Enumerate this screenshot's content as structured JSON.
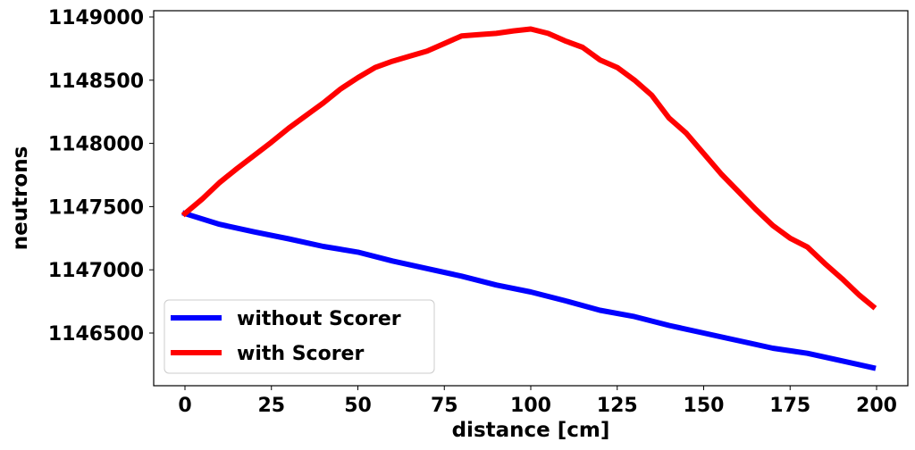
{
  "chart_data": {
    "type": "line",
    "title": "",
    "xlabel": "distance [cm]",
    "ylabel": "neutrons",
    "xlim": [
      -8.5,
      209
    ],
    "ylim": [
      1146110,
      1149050
    ],
    "xticks": [
      0,
      25,
      50,
      75,
      100,
      125,
      150,
      175,
      200
    ],
    "xtick_labels": [
      "0",
      "25",
      "50",
      "75",
      "100",
      "125",
      "150",
      "175",
      "200"
    ],
    "yticks": [
      1146500,
      1147000,
      1147500,
      1148000,
      1148500,
      1149000
    ],
    "ytick_labels": [
      "1146500",
      "1147000",
      "1147500",
      "1148000",
      "1148500",
      "1149000"
    ],
    "grid": false,
    "legend_position": "lower left",
    "series": [
      {
        "name": "without Scorer",
        "color": "#0000ff",
        "x": [
          0,
          10,
          20,
          30,
          40,
          50,
          60,
          70,
          80,
          90,
          100,
          110,
          120,
          130,
          140,
          150,
          160,
          170,
          180,
          190,
          199
        ],
        "values": [
          1147445,
          1147360,
          1147300,
          1147245,
          1147185,
          1147140,
          1147070,
          1147010,
          1146950,
          1146880,
          1146825,
          1146755,
          1146680,
          1146630,
          1146560,
          1146500,
          1146440,
          1146380,
          1146340,
          1146280,
          1146225
        ]
      },
      {
        "name": "with Scorer",
        "color": "#ff0000",
        "x": [
          0,
          5,
          10,
          15,
          20,
          25,
          30,
          35,
          40,
          45,
          50,
          55,
          60,
          65,
          70,
          75,
          80,
          85,
          90,
          95,
          100,
          105,
          110,
          115,
          120,
          125,
          130,
          135,
          140,
          145,
          150,
          155,
          160,
          165,
          170,
          175,
          180,
          185,
          190,
          195,
          199
        ],
        "values": [
          1147445,
          1147560,
          1147690,
          1147800,
          1147905,
          1148010,
          1148120,
          1148220,
          1148320,
          1148430,
          1148520,
          1148600,
          1148650,
          1148690,
          1148730,
          1148790,
          1148850,
          1148860,
          1148870,
          1148890,
          1148905,
          1148870,
          1148810,
          1148760,
          1148660,
          1148600,
          1148500,
          1148380,
          1148200,
          1148080,
          1147920,
          1147760,
          1147620,
          1147480,
          1147350,
          1147250,
          1147180,
          1147050,
          1146930,
          1146800,
          1146710
        ]
      }
    ]
  },
  "legend": {
    "items": [
      {
        "label": "without Scorer",
        "color": "#0000ff"
      },
      {
        "label": "with Scorer",
        "color": "#ff0000"
      }
    ]
  }
}
